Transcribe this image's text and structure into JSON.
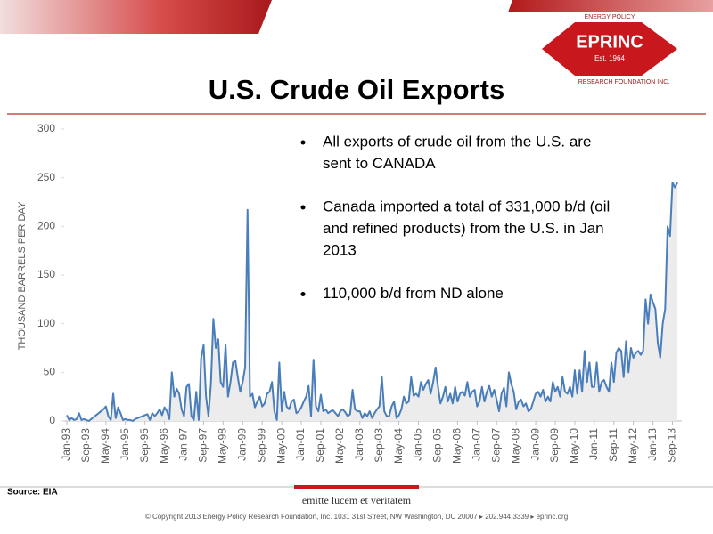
{
  "slide": {
    "logo_name": "EPRINC",
    "logo_est": "Est. 1964",
    "logo_ring_top": "ENERGY POLICY",
    "logo_ring_bottom": "RESEARCH FOUNDATION INC.",
    "bullets": [
      [
        "All exports of crude oil from the U.S. are",
        "sent to CANADA"
      ],
      [
        "Canada imported a total of 331,000 b/d (oil",
        "and refined products) from the U.S. in Jan",
        "2013"
      ],
      [
        "110,000 b/d from ND alone"
      ]
    ],
    "source": "Source: EIA",
    "motto": "emitte lucem et veritatem",
    "copyright": "© Copyright 2013 Energy Policy Research Foundation, Inc. 1031 31st Street, NW Washington, DC 20007 ▸ 202.944.3339 ▸ eprinc.org"
  },
  "chart_data": {
    "type": "line",
    "title": "U.S. Crude Oil Exports",
    "y_label": "THOUSAND BARRELS PER DAY",
    "color": "#4a7ebb",
    "ylim": [
      0,
      300
    ],
    "yticks": [
      0,
      50,
      100,
      150,
      200,
      250,
      300
    ],
    "grid": false,
    "categories": [
      "Jan-93",
      null,
      null,
      null,
      null,
      null,
      null,
      null,
      "Sep-93",
      null,
      null,
      null,
      null,
      null,
      null,
      null,
      "May-94",
      null,
      null,
      null,
      null,
      null,
      null,
      null,
      "Jan-95",
      null,
      null,
      null,
      null,
      null,
      null,
      null,
      "Sep-95",
      null,
      null,
      null,
      null,
      null,
      null,
      null,
      "May-96",
      null,
      null,
      null,
      null,
      null,
      null,
      null,
      "Jan-97",
      null,
      null,
      null,
      null,
      null,
      null,
      null,
      "Sep-97",
      null,
      null,
      null,
      null,
      null,
      null,
      null,
      "May-98",
      null,
      null,
      null,
      null,
      null,
      null,
      null,
      "Jan-99",
      null,
      null,
      null,
      null,
      null,
      null,
      null,
      "Sep-99",
      null,
      null,
      null,
      null,
      null,
      null,
      null,
      "May-00",
      null,
      null,
      null,
      null,
      null,
      null,
      null,
      "Jan-01",
      null,
      null,
      null,
      null,
      null,
      null,
      null,
      "Sep-01",
      null,
      null,
      null,
      null,
      null,
      null,
      null,
      "May-02",
      null,
      null,
      null,
      null,
      null,
      null,
      null,
      "Jan-03",
      null,
      null,
      null,
      null,
      null,
      null,
      null,
      "Sep-03",
      null,
      null,
      null,
      null,
      null,
      null,
      null,
      "May-04",
      null,
      null,
      null,
      null,
      null,
      null,
      null,
      "Jan-05",
      null,
      null,
      null,
      null,
      null,
      null,
      null,
      "Sep-05",
      null,
      null,
      null,
      null,
      null,
      null,
      null,
      "May-06",
      null,
      null,
      null,
      null,
      null,
      null,
      null,
      "Jan-07",
      null,
      null,
      null,
      null,
      null,
      null,
      null,
      "Sep-07",
      null,
      null,
      null,
      null,
      null,
      null,
      null,
      "May-08",
      null,
      null,
      null,
      null,
      null,
      null,
      null,
      "Jan-09",
      null,
      null,
      null,
      null,
      null,
      null,
      null,
      "Sep-09",
      null,
      null,
      null,
      null,
      null,
      null,
      null,
      "May-10",
      null,
      null,
      null,
      null,
      null,
      null,
      null,
      "Jan-11",
      null,
      null,
      null,
      null,
      null,
      null,
      null,
      "Sep-11",
      null,
      null,
      null,
      null,
      null,
      null,
      null,
      "May-12",
      null,
      null,
      null,
      null,
      null,
      null,
      null,
      "Jan-13",
      null,
      null,
      null,
      null,
      null,
      null,
      null,
      "Sep-13",
      null,
      null
    ],
    "values": [
      6,
      1,
      3,
      1,
      2,
      8,
      1,
      2,
      1,
      0,
      2,
      4,
      6,
      8,
      10,
      12,
      15,
      5,
      1,
      28,
      3,
      14,
      8,
      1,
      2,
      1,
      1,
      0,
      2,
      3,
      4,
      5,
      6,
      7,
      1,
      8,
      5,
      8,
      12,
      6,
      14,
      10,
      2,
      50,
      25,
      33,
      28,
      12,
      5,
      35,
      38,
      5,
      1,
      30,
      1,
      65,
      78,
      25,
      5,
      38,
      105,
      75,
      84,
      40,
      35,
      78,
      25,
      40,
      60,
      62,
      45,
      30,
      40,
      55,
      217,
      25,
      28,
      14,
      20,
      25,
      15,
      18,
      28,
      30,
      40,
      10,
      1,
      60,
      10,
      30,
      15,
      12,
      20,
      22,
      8,
      10,
      14,
      20,
      25,
      36,
      5,
      63,
      15,
      10,
      27,
      10,
      12,
      8,
      10,
      11,
      8,
      5,
      10,
      12,
      9,
      5,
      7,
      32,
      12,
      10,
      10,
      3,
      8,
      5,
      10,
      3,
      8,
      12,
      15,
      45,
      10,
      5,
      5,
      15,
      20,
      3,
      6,
      12,
      25,
      18,
      20,
      45,
      26,
      28,
      25,
      40,
      32,
      38,
      42,
      28,
      40,
      55,
      35,
      18,
      25,
      35,
      20,
      28,
      18,
      35,
      20,
      28,
      30,
      26,
      40,
      25,
      30,
      32,
      15,
      20,
      35,
      20,
      30,
      36,
      25,
      32,
      22,
      10,
      28,
      34,
      15,
      50,
      38,
      30,
      12,
      20,
      22,
      15,
      18,
      10,
      12,
      20,
      28,
      30,
      25,
      32,
      20,
      25,
      20,
      40,
      30,
      35,
      25,
      45,
      30,
      28,
      35,
      25,
      52,
      28,
      52,
      30,
      72,
      40,
      60,
      35,
      35,
      60,
      30,
      40,
      42,
      35,
      30,
      60,
      40,
      70,
      75,
      72,
      45,
      82,
      50,
      75,
      65,
      70,
      72,
      68,
      72,
      125,
      100,
      130,
      122,
      115,
      80,
      65,
      100,
      115,
      200,
      190,
      245,
      240,
      245
    ]
  }
}
